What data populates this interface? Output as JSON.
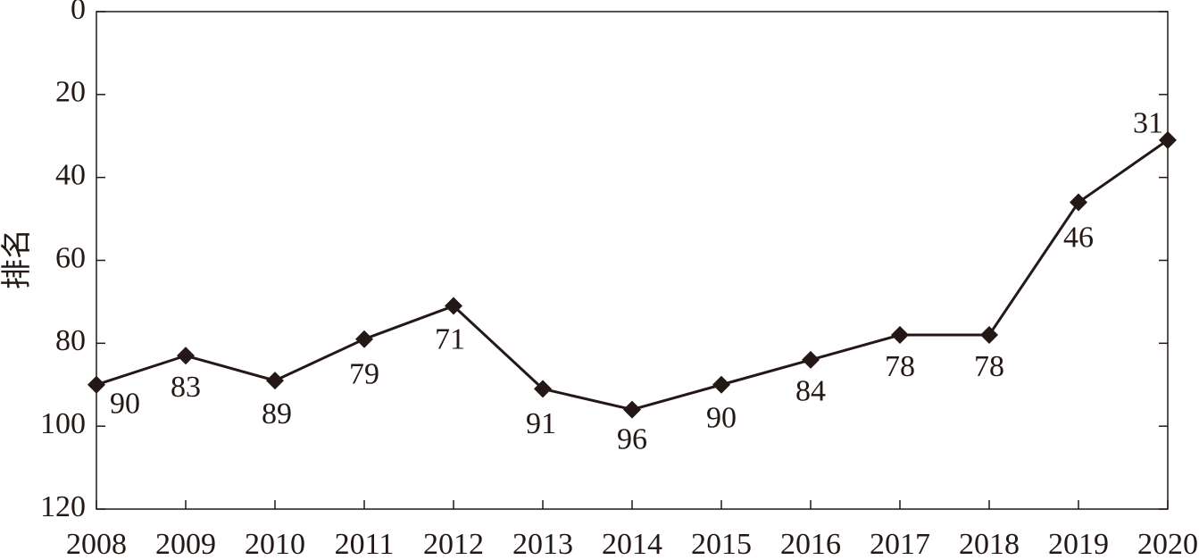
{
  "chart_data": {
    "type": "line",
    "y_label": "排名",
    "categories": [
      "2008",
      "2009",
      "2010",
      "2011",
      "2012",
      "2013",
      "2014",
      "2015",
      "2016",
      "2017",
      "2018",
      "2019",
      "2020"
    ],
    "values": [
      90,
      83,
      89,
      79,
      71,
      91,
      96,
      90,
      84,
      78,
      78,
      46,
      31
    ],
    "color": "#231815",
    "ylim": [
      0,
      120
    ],
    "yticks": [
      0,
      20,
      40,
      60,
      80,
      100,
      120
    ],
    "y_inverted": true,
    "grid": false
  }
}
